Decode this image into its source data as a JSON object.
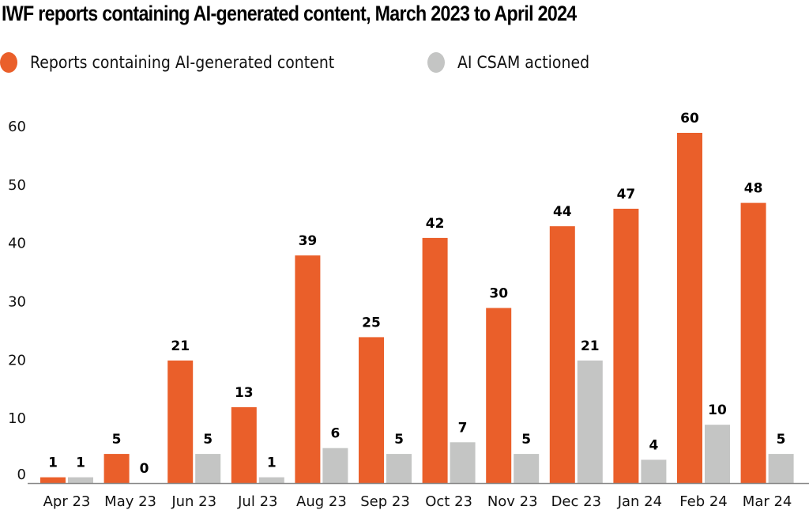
{
  "chart_data": {
    "type": "bar",
    "title": "IWF reports containing AI-generated content, March 2023 to April 2024",
    "xlabel": "",
    "ylabel": "",
    "ylim": [
      0,
      60
    ],
    "yticks": [
      "0",
      "10",
      "20",
      "30",
      "40",
      "50",
      "60"
    ],
    "ytick_values": [
      0,
      10,
      20,
      30,
      40,
      50,
      60
    ],
    "grid": false,
    "legend_position": "top-left",
    "categories": [
      "Apr 23",
      "May 23",
      "Jun 23",
      "Jul 23",
      "Aug 23",
      "Sep 23",
      "Oct 23",
      "Nov 23",
      "Dec 23",
      "Jan 24",
      "Feb 24",
      "Mar 24"
    ],
    "series": [
      {
        "name": "Reports containing AI-generated content",
        "color": "#ea5f2a",
        "values": [
          1,
          5,
          21,
          13,
          39,
          25,
          42,
          30,
          44,
          47,
          60,
          48
        ],
        "labels": [
          "1",
          "5",
          "21",
          "13",
          "39",
          "25",
          "42",
          "30",
          "44",
          "47",
          "60",
          "48"
        ]
      },
      {
        "name": "AI CSAM actioned",
        "color": "#c4c5c4",
        "values": [
          1,
          0,
          5,
          1,
          6,
          5,
          7,
          5,
          21,
          4,
          10,
          5
        ],
        "labels": [
          "1",
          "0",
          "5",
          "1",
          "6",
          "5",
          "7",
          "5",
          "21",
          "4",
          "10",
          "5"
        ]
      }
    ]
  }
}
